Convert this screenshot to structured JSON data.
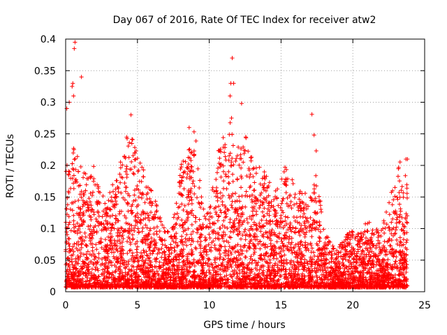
{
  "chart_data": {
    "type": "scatter",
    "title": "Day 067 of 2016, Rate Of TEC Index for receiver atw2",
    "xlabel": "GPS time / hours",
    "ylabel": "ROTI / TECUs",
    "xlim": [
      0,
      25
    ],
    "ylim": [
      0,
      0.4
    ],
    "xticks": [
      0,
      5,
      10,
      15,
      20,
      25
    ],
    "xtick_labels": [
      "0",
      "5",
      "10",
      "15",
      "20",
      "25"
    ],
    "yticks": [
      0,
      0.05,
      0.1,
      0.15,
      0.2,
      0.25,
      0.3,
      0.35,
      0.4
    ],
    "ytick_labels": [
      "0",
      "0.05",
      "0.1",
      "0.15",
      "0.2",
      "0.25",
      "0.3",
      "0.35",
      "0.4"
    ],
    "grid": true,
    "marker": "+",
    "color": "#ff0000",
    "envelope": {
      "description": "approximate upper envelope of the dense point cloud (hour, ROTI)",
      "x": [
        0,
        0.5,
        1,
        1.5,
        2,
        2.5,
        3,
        3.5,
        4,
        4.5,
        5,
        5.5,
        6,
        6.5,
        7,
        7.5,
        8,
        8.5,
        9,
        9.5,
        10,
        10.5,
        11,
        11.5,
        12,
        12.5,
        13,
        13.5,
        14,
        14.5,
        15,
        15.5,
        16,
        16.5,
        17,
        17.5,
        18,
        18.5,
        19,
        19.5,
        20,
        20.5,
        21,
        21.5,
        22,
        22.5,
        23,
        23.5,
        23.8
      ],
      "y": [
        0.2,
        0.24,
        0.2,
        0.19,
        0.2,
        0.15,
        0.16,
        0.18,
        0.22,
        0.27,
        0.22,
        0.19,
        0.16,
        0.13,
        0.09,
        0.12,
        0.2,
        0.22,
        0.26,
        0.14,
        0.13,
        0.22,
        0.25,
        0.27,
        0.23,
        0.25,
        0.21,
        0.2,
        0.19,
        0.15,
        0.2,
        0.2,
        0.17,
        0.16,
        0.15,
        0.19,
        0.1,
        0.08,
        0.07,
        0.09,
        0.1,
        0.09,
        0.12,
        0.1,
        0.1,
        0.14,
        0.2,
        0.21,
        0.17
      ]
    },
    "outliers": {
      "x": [
        0.08,
        0.25,
        0.45,
        0.5,
        0.55,
        0.6,
        0.65,
        1.1,
        4.55,
        8.6,
        11.45,
        11.5,
        11.55,
        11.6,
        11.7,
        12.25,
        17.15,
        17.3,
        17.45,
        23.7,
        23.8
      ],
      "y": [
        0.29,
        0.3,
        0.325,
        0.33,
        0.31,
        0.385,
        0.395,
        0.34,
        0.28,
        0.26,
        0.31,
        0.33,
        0.275,
        0.37,
        0.33,
        0.298,
        0.281,
        0.248,
        0.223,
        0.21,
        0.21
      ]
    }
  }
}
